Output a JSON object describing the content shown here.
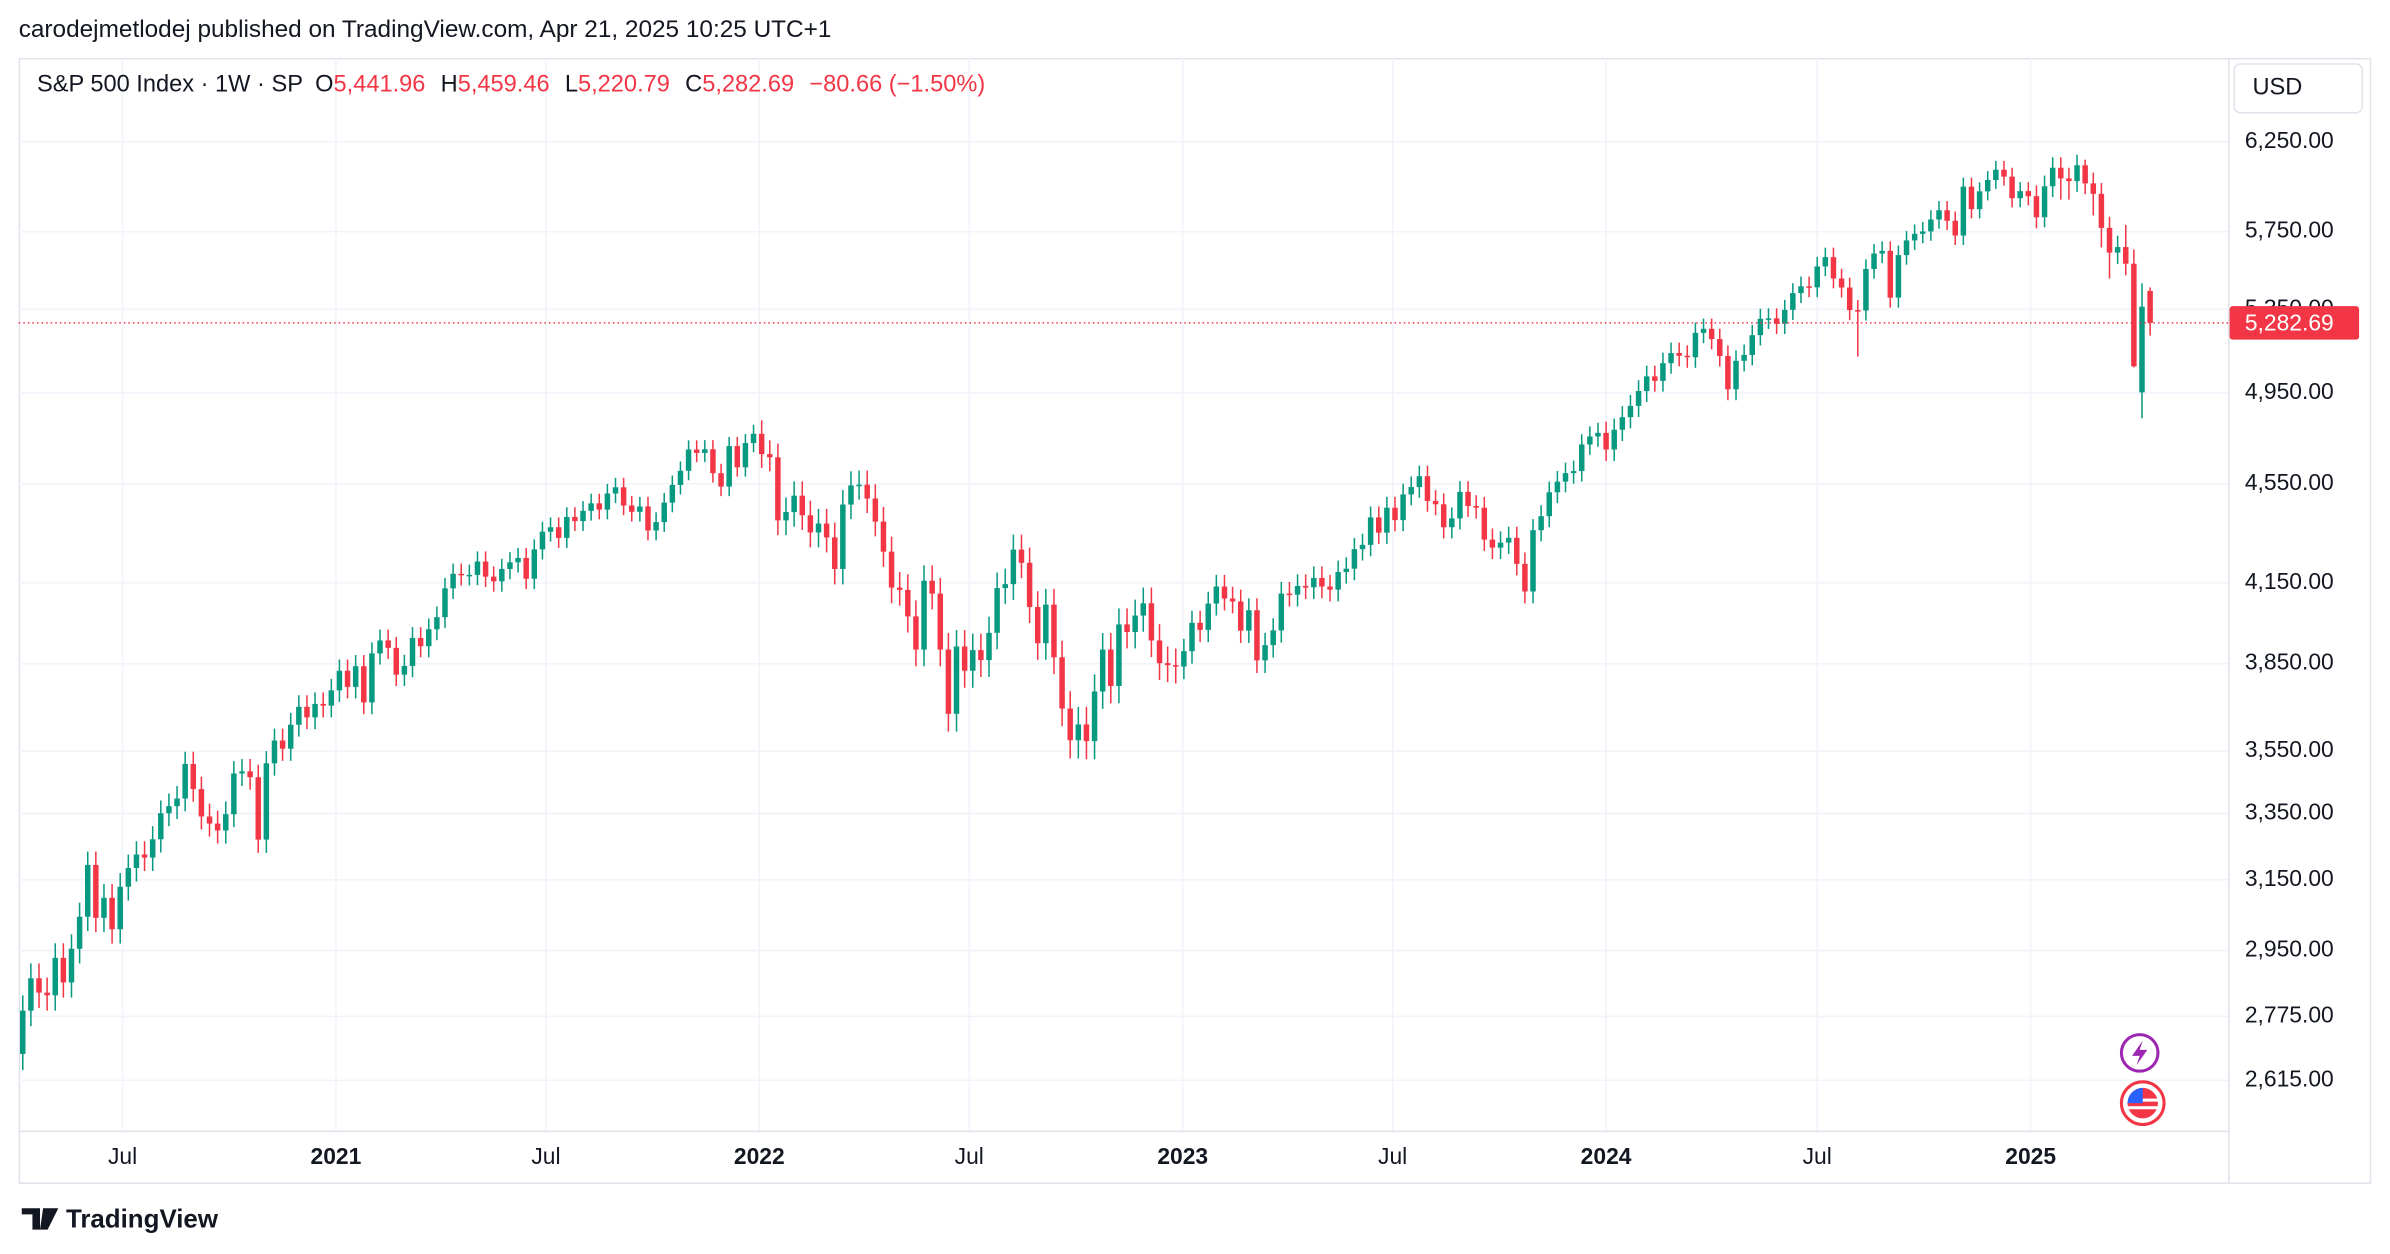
{
  "attribution": "carodejmetlodej published on TradingView.com, Apr 21, 2025 10:25 UTC+1",
  "footer": "TradingView",
  "chart_data": {
    "type": "candlestick",
    "title": "S&P 500 Index · 1W · SP",
    "ohlc_labels": [
      {
        "key": "O",
        "text": "5,441.96"
      },
      {
        "key": "H",
        "text": "5,459.46"
      },
      {
        "key": "L",
        "text": "5,220.79"
      },
      {
        "key": "C",
        "text": "5,282.69"
      }
    ],
    "change_label": "−80.66 (−1.50%)",
    "currency": "USD",
    "last_price": {
      "value": 5282.69,
      "label": "5,282.69"
    },
    "up_color": "#089981",
    "down_color": "#f23645",
    "log_scale": true,
    "grid": true,
    "xlim": [
      -0.5,
      271.6
    ],
    "xticks": [
      {
        "value": 12.29,
        "label": "Jul"
      },
      {
        "value": 38.57,
        "label": "2021"
      },
      {
        "value": 64.43,
        "label": "Jul"
      },
      {
        "value": 90.71,
        "label": "2022"
      },
      {
        "value": 116.57,
        "label": "Jul"
      },
      {
        "value": 142.86,
        "label": "2023"
      },
      {
        "value": 168.71,
        "label": "Jul"
      },
      {
        "value": 195,
        "label": "2024"
      },
      {
        "value": 221,
        "label": "Jul"
      },
      {
        "value": 247.29,
        "label": "2025"
      }
    ],
    "ylim": [
      2496,
      6756
    ],
    "yticks": [
      {
        "value": 6250,
        "label": "6,250.00"
      },
      {
        "value": 5750,
        "label": "5,750.00"
      },
      {
        "value": 5350,
        "label": "5,350.00"
      },
      {
        "value": 4950,
        "label": "4,950.00"
      },
      {
        "value": 4550,
        "label": "4,550.00"
      },
      {
        "value": 4150,
        "label": "4,150.00"
      },
      {
        "value": 3850,
        "label": "3,850.00"
      },
      {
        "value": 3550,
        "label": "3,550.00"
      },
      {
        "value": 3350,
        "label": "3,350.00"
      },
      {
        "value": 3150,
        "label": "3,150.00"
      },
      {
        "value": 2950,
        "label": "2,950.00"
      },
      {
        "value": 2775,
        "label": "2,775.00"
      },
      {
        "value": 2615,
        "label": "2,615.00"
      }
    ],
    "open": [
      2680,
      2790,
      2875,
      2837,
      2830,
      2930,
      2864,
      2955,
      3044,
      3194,
      3041,
      3098,
      3009,
      3130,
      3185,
      3225,
      3216,
      3271,
      3351,
      3373,
      3397,
      3508,
      3427,
      3341,
      3319,
      3298,
      3348,
      3477,
      3484,
      3465,
      3270,
      3510,
      3585,
      3558,
      3638,
      3699,
      3663,
      3709,
      3703,
      3756,
      3825,
      3768,
      3841,
      3714,
      3887,
      3934,
      3907,
      3811,
      3842,
      3943,
      3913,
      3975,
      4020,
      4129,
      4185,
      4180,
      4181,
      4233,
      4174,
      4156,
      4204,
      4230,
      4247,
      4166,
      4281,
      4352,
      4370,
      4327,
      4412,
      4395,
      4437,
      4468,
      4442,
      4509,
      4535,
      4459,
      4433,
      4455,
      4357,
      4391,
      4471,
      4545,
      4605,
      4697,
      4682,
      4698,
      4595,
      4538,
      4712,
      4620,
      4725,
      4766,
      4677,
      4663,
      4398,
      4432,
      4500,
      4419,
      4349,
      4385,
      4329,
      4204,
      4463,
      4543,
      4546,
      4488,
      4393,
      4272,
      4132,
      4123,
      4023,
      3901,
      4158,
      4109,
      3901,
      3675,
      3912,
      3825,
      3899,
      3863,
      3962,
      4130,
      4145,
      4280,
      4228,
      4058,
      3924,
      4067,
      3873,
      3693,
      3586,
      3639,
      3583,
      3752,
      3901,
      3771,
      3993,
      3965,
      4026,
      4072,
      3934,
      3852,
      3845,
      3840,
      3895,
      3999,
      3973,
      4071,
      4136,
      4090,
      4079,
      3970,
      4046,
      3862,
      3917,
      3971,
      4109,
      4105,
      4138,
      4133,
      4169,
      4136,
      4124,
      4192,
      4205,
      4282,
      4299,
      4410,
      4348,
      4450,
      4399,
      4505,
      4536,
      4582,
      4478,
      4464,
      4370,
      4406,
      4516,
      4457,
      4450,
      4320,
      4288,
      4308,
      4327,
      4224,
      4117,
      4358,
      4415,
      4514,
      4559,
      4595,
      4604,
      4719,
      4754,
      4770,
      4697,
      4784,
      4840,
      4891,
      4959,
      5027,
      5006,
      5089,
      5137,
      5124,
      5117,
      5234,
      5254,
      5204,
      5123,
      4967,
      5100,
      5128,
      5223,
      5303,
      5305,
      5278,
      5347,
      5431,
      5465,
      5460,
      5567,
      5615,
      5505,
      5459,
      5346,
      5344,
      5554,
      5634,
      5648,
      5408,
      5626,
      5703,
      5738,
      5751,
      5815,
      5865,
      5808,
      5729,
      5995,
      5871,
      5969,
      6032,
      6090,
      6051,
      5931,
      5970,
      5942,
      5827,
      5997,
      6101,
      6041,
      6026,
      6115,
      6013,
      5955,
      5770,
      5639,
      5668,
      5581,
      4953,
      5441.96
    ],
    "high": [
      2830,
      2915,
      2915,
      2877,
      2970,
      2970,
      2995,
      3084,
      3234,
      3234,
      3138,
      3138,
      3170,
      3225,
      3265,
      3265,
      3311,
      3391,
      3413,
      3437,
      3548,
      3548,
      3467,
      3381,
      3359,
      3388,
      3517,
      3524,
      3524,
      3505,
      3550,
      3625,
      3625,
      3678,
      3739,
      3739,
      3749,
      3749,
      3796,
      3865,
      3865,
      3881,
      3881,
      3927,
      3974,
      3974,
      3947,
      3882,
      3983,
      3983,
      4015,
      4060,
      4169,
      4225,
      4225,
      4221,
      4273,
      4273,
      4214,
      4244,
      4270,
      4287,
      4287,
      4321,
      4392,
      4410,
      4410,
      4452,
      4452,
      4477,
      4508,
      4508,
      4549,
      4575,
      4575,
      4499,
      4495,
      4495,
      4431,
      4511,
      4585,
      4645,
      4737,
      4737,
      4738,
      4738,
      4635,
      4752,
      4752,
      4765,
      4806,
      4826,
      4737,
      4723,
      4492,
      4560,
      4560,
      4479,
      4445,
      4445,
      4389,
      4523,
      4603,
      4606,
      4606,
      4548,
      4453,
      4332,
      4192,
      4183,
      4083,
      4218,
      4218,
      4169,
      3961,
      3972,
      3972,
      3959,
      3959,
      4022,
      4190,
      4205,
      4340,
      4340,
      4288,
      4118,
      4127,
      4127,
      3933,
      3753,
      3699,
      3699,
      3812,
      3961,
      3961,
      4053,
      4053,
      4086,
      4132,
      4132,
      3994,
      3912,
      3905,
      3940,
      4044,
      4044,
      4116,
      4181,
      4181,
      4135,
      4124,
      4091,
      4091,
      3962,
      4016,
      4154,
      4154,
      4183,
      4183,
      4214,
      4214,
      4181,
      4237,
      4250,
      4327,
      4344,
      4455,
      4455,
      4495,
      4495,
      4550,
      4581,
      4627,
      4627,
      4523,
      4509,
      4451,
      4561,
      4561,
      4502,
      4495,
      4365,
      4353,
      4372,
      4372,
      4269,
      4403,
      4460,
      4559,
      4604,
      4640,
      4649,
      4764,
      4799,
      4815,
      4820,
      4834,
      4890,
      4941,
      5009,
      5077,
      5077,
      5139,
      5187,
      5187,
      5174,
      5284,
      5304,
      5304,
      5254,
      5173,
      5150,
      5178,
      5273,
      5353,
      5355,
      5355,
      5397,
      5481,
      5515,
      5515,
      5617,
      5665,
      5665,
      5555,
      5509,
      5396,
      5604,
      5684,
      5698,
      5698,
      5676,
      5753,
      5788,
      5801,
      5865,
      5915,
      5915,
      5858,
      6045,
      6045,
      6019,
      6082,
      6140,
      6140,
      6101,
      6020,
      6020,
      6002,
      6057,
      6161,
      6161,
      6101,
      6175,
      6147,
      6073,
      6015,
      5830,
      5728,
      5786,
      5655,
      5481,
      5459.46
    ],
    "low": [
      2640,
      2750,
      2797,
      2790,
      2790,
      2824,
      2824,
      2915,
      3004,
      3001,
      3001,
      2969,
      2969,
      3090,
      3145,
      3176,
      3176,
      3231,
      3311,
      3333,
      3357,
      3387,
      3301,
      3279,
      3258,
      3258,
      3308,
      3437,
      3425,
      3230,
      3230,
      3470,
      3518,
      3518,
      3598,
      3623,
      3623,
      3663,
      3663,
      3716,
      3728,
      3728,
      3674,
      3674,
      3847,
      3867,
      3771,
      3771,
      3802,
      3873,
      3873,
      3935,
      3980,
      4089,
      4140,
      4140,
      4141,
      4134,
      4116,
      4116,
      4164,
      4190,
      4126,
      4126,
      4241,
      4312,
      4287,
      4287,
      4355,
      4355,
      4397,
      4402,
      4402,
      4469,
      4419,
      4393,
      4393,
      4317,
      4317,
      4351,
      4431,
      4505,
      4565,
      4642,
      4642,
      4555,
      4498,
      4498,
      4580,
      4580,
      4685,
      4617,
      4603,
      4338,
      4338,
      4372,
      4359,
      4289,
      4289,
      4269,
      4144,
      4144,
      4403,
      4483,
      4428,
      4333,
      4212,
      4072,
      4063,
      3963,
      3841,
      3841,
      4049,
      3841,
      3615,
      3615,
      3765,
      3765,
      3803,
      3803,
      3902,
      4070,
      4085,
      4168,
      3998,
      3864,
      3864,
      3813,
      3633,
      3526,
      3526,
      3523,
      3523,
      3692,
      3711,
      3711,
      3905,
      3905,
      3966,
      3874,
      3792,
      3785,
      3780,
      3795,
      3850,
      3928,
      3928,
      4026,
      4045,
      4034,
      3925,
      3925,
      3817,
      3817,
      3872,
      3926,
      4060,
      4060,
      4088,
      4088,
      4091,
      4079,
      4079,
      4147,
      4160,
      4237,
      4254,
      4303,
      4303,
      4354,
      4354,
      4460,
      4491,
      4433,
      4419,
      4325,
      4325,
      4361,
      4412,
      4405,
      4275,
      4243,
      4243,
      4263,
      4179,
      4072,
      4072,
      4313,
      4370,
      4469,
      4514,
      4550,
      4559,
      4674,
      4709,
      4647,
      4647,
      4734,
      4790,
      4841,
      4909,
      4956,
      4956,
      5039,
      5074,
      5067,
      5067,
      5184,
      5154,
      5073,
      4917,
      4917,
      5050,
      5078,
      5173,
      5253,
      5228,
      5228,
      5297,
      5381,
      5410,
      5410,
      5517,
      5455,
      5409,
      5296,
      5120,
      5294,
      5504,
      5584,
      5358,
      5358,
      5576,
      5653,
      5688,
      5701,
      5765,
      5758,
      5679,
      5679,
      5821,
      5821,
      5919,
      5982,
      6001,
      5881,
      5881,
      5892,
      5767,
      5773,
      5937,
      5923,
      5923,
      5966,
      5953,
      5837,
      5666,
      5505,
      5579,
      5521,
      5069,
      4835,
      5220.79
    ],
    "close": [
      2790,
      2875,
      2837,
      2830,
      2930,
      2864,
      2955,
      3044,
      3194,
      3041,
      3098,
      3009,
      3130,
      3185,
      3225,
      3216,
      3271,
      3351,
      3373,
      3397,
      3508,
      3427,
      3341,
      3319,
      3298,
      3348,
      3477,
      3484,
      3465,
      3270,
      3510,
      3585,
      3558,
      3638,
      3699,
      3663,
      3709,
      3703,
      3756,
      3825,
      3768,
      3841,
      3714,
      3887,
      3934,
      3907,
      3811,
      3842,
      3943,
      3913,
      3975,
      4020,
      4129,
      4185,
      4180,
      4181,
      4233,
      4174,
      4156,
      4204,
      4230,
      4247,
      4166,
      4281,
      4352,
      4370,
      4327,
      4412,
      4395,
      4437,
      4468,
      4442,
      4509,
      4535,
      4459,
      4433,
      4455,
      4357,
      4391,
      4471,
      4545,
      4605,
      4697,
      4682,
      4698,
      4595,
      4538,
      4712,
      4620,
      4725,
      4766,
      4677,
      4663,
      4398,
      4432,
      4500,
      4419,
      4349,
      4385,
      4329,
      4204,
      4463,
      4543,
      4546,
      4488,
      4393,
      4272,
      4132,
      4123,
      4023,
      3901,
      4158,
      4109,
      3901,
      3675,
      3912,
      3825,
      3899,
      3863,
      3962,
      4130,
      4145,
      4280,
      4228,
      4058,
      3924,
      4067,
      3873,
      3693,
      3586,
      3639,
      3583,
      3752,
      3901,
      3771,
      3993,
      3965,
      4026,
      4072,
      3934,
      3852,
      3845,
      3840,
      3895,
      3999,
      3973,
      4071,
      4136,
      4090,
      4079,
      3970,
      4046,
      3862,
      3917,
      3971,
      4109,
      4105,
      4138,
      4133,
      4169,
      4136,
      4124,
      4192,
      4205,
      4282,
      4299,
      4410,
      4348,
      4450,
      4399,
      4505,
      4536,
      4582,
      4478,
      4464,
      4370,
      4406,
      4516,
      4457,
      4450,
      4320,
      4288,
      4308,
      4327,
      4224,
      4117,
      4358,
      4415,
      4514,
      4559,
      4595,
      4604,
      4719,
      4754,
      4770,
      4697,
      4784,
      4840,
      4891,
      4959,
      5027,
      5006,
      5089,
      5137,
      5124,
      5117,
      5234,
      5254,
      5204,
      5123,
      4967,
      5100,
      5128,
      5223,
      5303,
      5305,
      5278,
      5347,
      5431,
      5465,
      5460,
      5567,
      5615,
      5505,
      5459,
      5346,
      5344,
      5554,
      5634,
      5648,
      5408,
      5626,
      5703,
      5738,
      5751,
      5815,
      5865,
      5808,
      5729,
      5995,
      5871,
      5969,
      6032,
      6090,
      6051,
      5931,
      5970,
      5942,
      5827,
      5997,
      6101,
      6041,
      6026,
      6115,
      6013,
      5955,
      5770,
      5639,
      5668,
      5581,
      5074,
      5363,
      5282.69
    ]
  }
}
